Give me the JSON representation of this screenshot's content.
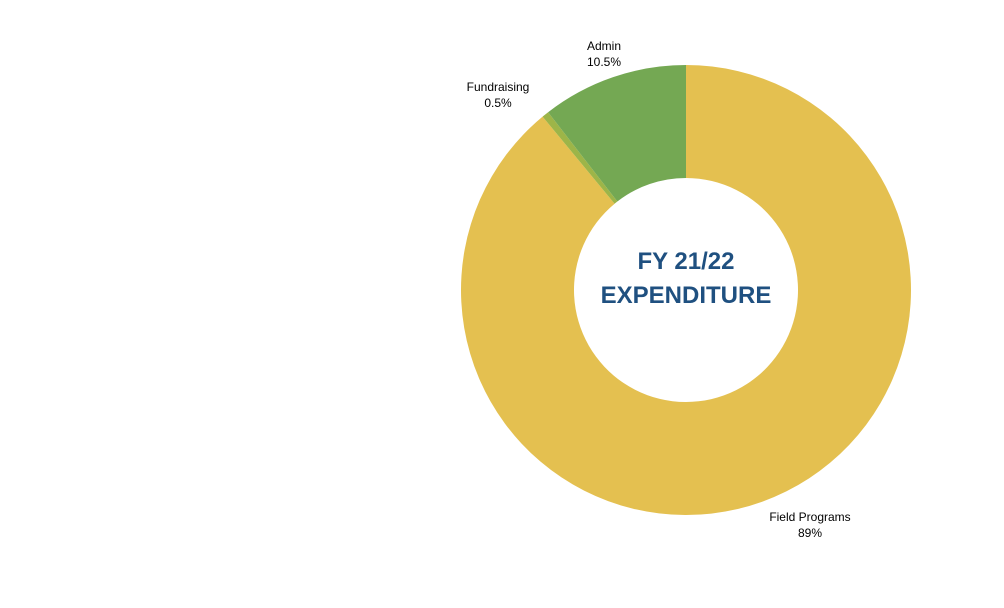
{
  "chart_data": {
    "type": "pie",
    "donut": true,
    "center_text": [
      "FY 21/22",
      "EXPENDITURE"
    ],
    "center_text_color": "#1F5080",
    "slices": [
      {
        "label": "Field Programs",
        "percent_text": "89%",
        "value": 89,
        "color": "#E4C050"
      },
      {
        "label": "Fundraising",
        "percent_text": "0.5%",
        "value": 0.5,
        "color": "#9DB548"
      },
      {
        "label": "Admin",
        "percent_text": "10.5%",
        "value": 10.5,
        "color": "#74A853"
      }
    ],
    "start": "12 o'clock",
    "direction": "clockwise",
    "legend": "none"
  }
}
